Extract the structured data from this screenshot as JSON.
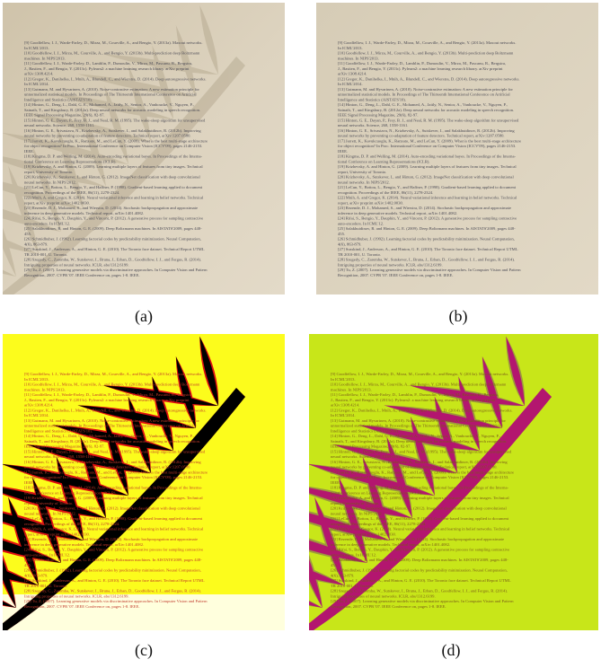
{
  "panels": [
    {
      "id": "a",
      "caption": "(a)",
      "description": "photo of a printed reference list with palm-leaf shadow",
      "colors": {
        "paper": "#d8cdb7",
        "shadow": "#b9ad94",
        "text": "#4b4a55"
      }
    },
    {
      "id": "b",
      "caption": "(b)",
      "description": "same page with shadow removed",
      "colors": {
        "paper": "#dcd2bd",
        "text": "#4b4a55"
      }
    },
    {
      "id": "c",
      "caption": "(c)",
      "description": "thresholded shadow map black/red/yellow",
      "colors": {
        "background": "#fcfc1c",
        "shadow": "#000000",
        "edge": "#e01010",
        "text": "#c0392b"
      }
    },
    {
      "id": "d",
      "caption": "(d)",
      "description": "shadow segmentation green/magenta",
      "colors": {
        "background": "#c8e619",
        "mid": "#9d9a3c",
        "shadow": "#b3166f",
        "text": "#7a5a1a"
      }
    }
  ],
  "document_lines": [
    "[9] Goodfellow, I. J., Warde-Farley, D., Mirza, M., Courville, A., and Bengio, Y. (2013a). Maxout networks.",
    "    In ICML'2013.",
    "[10] Goodfellow, I. J., Mirza, M., Courville, A., and Bengio, Y. (2013b). Multi-prediction deep Boltzmann",
    "    machines. In NIPS'2013.",
    "[11] Goodfellow, I. J., Warde-Farley, D., Lamblin, P., Dumoulin, V., Mirza, M., Pascanu, R., Bergstra,",
    "    J., Bastien, F., and Bengio, Y. (2013c). Pylearn2: a machine learning research library. arXiv preprint",
    "    arXiv:1308.4214.",
    "[12] Gregor, K., Danihelka, I., Mnih, A., Blundell, C., and Wierstra, D. (2014). Deep autoregressive networks.",
    "    In ICML'2014.",
    "[13] Gutmann, M. and Hyvarinen, A. (2010). Noise-contrastive estimation: A new estimation principle for",
    "    unnormalized statistical models. In Proceedings of The Thirteenth International Conference on Artificial",
    "    Intelligence and Statistics (AISTATS'10).",
    "[14] Hinton, G., Deng, L., Dahl, G. E., Mohamed, A., Jaitly, N., Senior, A., Vanhoucke, V., Nguyen, P.,",
    "    Sainath, T., and Kingsbury, B. (2012a). Deep neural networks for acoustic modeling in speech recognition.",
    "    IEEE Signal Processing Magazine, 29(6), 82-97.",
    "[15] Hinton, G. E., Dayan, P., Frey, B. J., and Neal, R. M. (1995). The wake-sleep algorithm for unsupervised",
    "    neural networks. Science, 268, 1558-1161.",
    "[16] Hinton, G. E., Srivastava, N., Krizhevsky, A., Sutskever, I., and Salakhutdinov, R. (2012b). Improving",
    "    neural networks by preventing co-adaptation of feature detectors. Technical report, arXiv:1207.0580.",
    "[17] Jarrett, K., Kavukcuoglu, K., Ranzato, M., and LeCun, Y. (2009). What is the best multi-stage architecture",
    "    for object recognition? In Proc. International Conference on Computer Vision (ICCV'09), pages 2146-2153.",
    "    IEEE.",
    "[18] Kingma, D. P. and Welling, M. (2014). Auto-encoding variational bayes. In Proceedings of the Interna-",
    "    tional Conference on Learning Representations (ICLR).",
    "[19] Krizhevsky, A. and Hinton, G. (2009). Learning multiple layers of features from tiny images. Technical",
    "    report, University of Toronto.",
    "[20] Krizhevsky, A., Sutskever, I., and Hinton, G. (2012). ImageNet classification with deep convolutional",
    "    neural networks. In NIPS'2012.",
    "[21] LeCun, Y., Bottou, L., Bengio, Y., and Haffner, P. (1998). Gradient-based learning applied to document",
    "    recognition. Proceedings of the IEEE, 86(11), 2278-2324.",
    "[22] Mnih, A. and Gregor, K. (2014). Neural variational inference and learning in belief networks. Technical",
    "    report, arXiv preprint arXiv:1402.0030.",
    "[23] Rezende, D. J., Mohamed, S., and Wierstra, D. (2014). Stochastic backpropagation and approximate",
    "    inference in deep generative models. Technical report, arXiv:1401.4082.",
    "[24] Rifai, S., Bengio, Y., Dauphin, Y., and Vincent, P. (2012). A generative process for sampling contractive",
    "    auto-encoders. In ICML'12.",
    "[25] Salakhutdinov, R. and Hinton, G. E. (2009). Deep Boltzmann machines. In AISTATS'2009, pages 448-",
    "    455.",
    "[26] Schmidhuber, J. (1992). Learning factorial codes by predictability minimization. Neural Computation,",
    "    4(6), 863-879.",
    "[27] Susskind, J., Anderson, A., and Hinton, G. E. (2010). The Toronto face dataset. Technical Report UTML",
    "    TR 2010-001, U. Toronto.",
    "[28] Szegedy, C., Zaremba, W., Sutskever, I., Bruna, J., Erhan, D., Goodfellow, I. J., and Fergus, R. (2014).",
    "    Intriguing properties of neural networks. ICLR, abs/1312.6199.",
    "[29] Tu, Z. (2007). Learning generative models via discriminative approaches. In Computer Vision and Pattern",
    "    Recognition, 2007. CVPR '07. IEEE Conference on, pages 1-8. IEEE."
  ]
}
